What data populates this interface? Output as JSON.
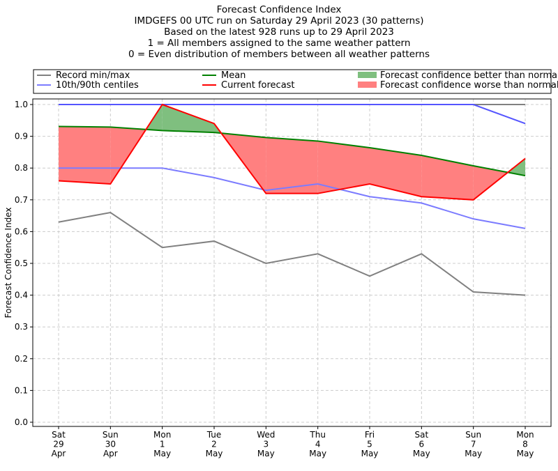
{
  "chart_data": {
    "type": "line",
    "title_lines": [
      "Forecast Confidence Index",
      "IMDGEFS 00 UTC run on Saturday 29 April 2023 (30 patterns)",
      "Based on the latest 928 runs up to 29 April 2023",
      "1 = All members assigned to the same weather pattern",
      "0 = Even distribution of members between all weather patterns"
    ],
    "ylabel": "Forecast Confidence Index",
    "xlabel": "",
    "ylim": [
      0,
      1
    ],
    "yticks": [
      "0.0",
      "0.1",
      "0.2",
      "0.3",
      "0.4",
      "0.5",
      "0.6",
      "0.7",
      "0.8",
      "0.9",
      "1.0"
    ],
    "grid": true,
    "legend_position": "top",
    "categories": [
      [
        "Sat",
        "29",
        "Apr"
      ],
      [
        "Sun",
        "30",
        "Apr"
      ],
      [
        "Mon",
        "1",
        "May"
      ],
      [
        "Tue",
        "2",
        "May"
      ],
      [
        "Wed",
        "3",
        "May"
      ],
      [
        "Thu",
        "4",
        "May"
      ],
      [
        "Fri",
        "5",
        "May"
      ],
      [
        "Sat",
        "6",
        "May"
      ],
      [
        "Sun",
        "7",
        "May"
      ],
      [
        "Mon",
        "8",
        "May"
      ]
    ],
    "series": [
      {
        "name": "Record min/max",
        "key": "record_min",
        "color": "#808080",
        "values": [
          0.63,
          0.66,
          0.55,
          0.57,
          0.5,
          0.53,
          0.46,
          0.53,
          0.41,
          0.4
        ]
      },
      {
        "name": "Record min/max",
        "key": "record_max",
        "color": "#808080",
        "values": [
          1,
          1,
          1,
          1,
          1,
          1,
          1,
          1,
          1,
          1
        ]
      },
      {
        "name": "10th/90th centiles",
        "key": "p10",
        "color": "#7b7bff",
        "values": [
          0.8,
          0.8,
          0.8,
          0.77,
          0.73,
          0.75,
          0.71,
          0.69,
          0.64,
          0.61
        ]
      },
      {
        "name": "10th/90th centiles",
        "key": "p90",
        "color": "#5555ff",
        "values": [
          1,
          1,
          1,
          1,
          1,
          1,
          1,
          1,
          1,
          0.94
        ]
      },
      {
        "name": "Mean",
        "key": "mean",
        "color": "#008000",
        "values": [
          0.931,
          0.929,
          0.918,
          0.912,
          0.896,
          0.885,
          0.864,
          0.84,
          0.807,
          0.776
        ]
      },
      {
        "name": "Current forecast",
        "key": "current",
        "color": "#ff0000",
        "values": [
          0.76,
          0.75,
          1.0,
          0.94,
          0.72,
          0.72,
          0.75,
          0.71,
          0.7,
          0.83
        ]
      }
    ],
    "fills": {
      "better": {
        "label": "Forecast confidence better than normal",
        "color": "#7fbf7f"
      },
      "worse": {
        "label": "Forecast confidence worse than normal",
        "color": "#ff8080"
      }
    },
    "legend": [
      {
        "label": "Record min/max",
        "color": "#808080",
        "kind": "line"
      },
      {
        "label": "10th/90th centiles",
        "color": "#7b7bff",
        "kind": "line"
      },
      {
        "label": "Mean",
        "color": "#008000",
        "kind": "line"
      },
      {
        "label": "Current forecast",
        "color": "#ff0000",
        "kind": "line"
      },
      {
        "label": "Forecast confidence better than normal",
        "color": "#7fbf7f",
        "kind": "patch"
      },
      {
        "label": "Forecast confidence worse than normal",
        "color": "#ff8080",
        "kind": "patch"
      }
    ]
  }
}
